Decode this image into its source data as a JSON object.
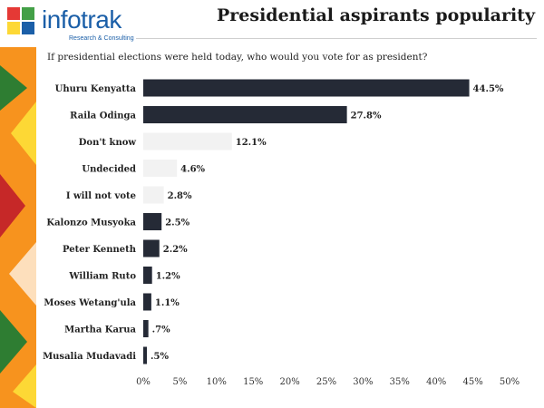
{
  "header": {
    "logo_text": "infotrak",
    "logo_subtitle": "Research & Consulting",
    "title": "Presidential aspirants popularity",
    "question": "If presidential elections were held today, who would you vote for as president?"
  },
  "colors": {
    "dark_bar": "#252a36",
    "light_bar": "#f2f2f2",
    "accent_orange": "#f7931e",
    "logo_blue": "#1b5fa8"
  },
  "chart_data": {
    "type": "bar",
    "orientation": "horizontal",
    "title": "Presidential aspirants popularity",
    "subtitle": "If presidential elections were held today, who would you vote for as president?",
    "categories": [
      "Uhuru Kenyatta",
      "Raila Odinga",
      "Don't know",
      "Undecided",
      "I will not vote",
      "Kalonzo Musyoka",
      "Peter Kenneth",
      "William Ruto",
      "Moses Wetang'ula",
      "Martha Karua",
      "Musalia Mudavadi"
    ],
    "values": [
      44.5,
      27.8,
      12.1,
      4.6,
      2.8,
      2.5,
      2.2,
      1.2,
      1.1,
      0.7,
      0.5
    ],
    "value_labels": [
      "44.5%",
      "27.8%",
      "12.1%",
      "4.6%",
      "2.8%",
      "2.5%",
      "2.2%",
      "1.2%",
      "1.1%",
      ".7%",
      ".5%"
    ],
    "bar_style": [
      "dark",
      "dark",
      "light",
      "light",
      "light",
      "dark",
      "dark",
      "dark",
      "dark",
      "dark",
      "dark"
    ],
    "xlim": [
      0,
      50
    ],
    "xticks": [
      0,
      5,
      10,
      15,
      20,
      25,
      30,
      35,
      40,
      45,
      50
    ],
    "xtick_labels": [
      "0%",
      "5%",
      "10%",
      "15%",
      "20%",
      "25%",
      "30%",
      "35%",
      "40%",
      "45%",
      "50%"
    ],
    "grid": false,
    "legend": "none"
  }
}
